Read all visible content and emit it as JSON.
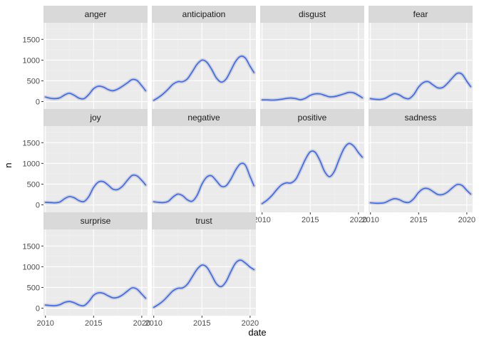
{
  "chart_data": {
    "type": "line",
    "xlabel": "date",
    "ylabel": "n",
    "xlim": [
      2009.8,
      2020.6
    ],
    "ylim": [
      -180,
      1900
    ],
    "x_ticks": [
      2010,
      2015,
      2020
    ],
    "x_tick_labels": [
      "2010",
      "2015",
      "2020"
    ],
    "y_ticks": [
      0,
      500,
      1000,
      1500
    ],
    "y_tick_labels": [
      "0",
      "500",
      "1000",
      "1500"
    ],
    "grid": true,
    "legend": "none",
    "colors": {
      "panel_bg": "#ebebeb",
      "strip_bg": "#d9d9d9",
      "grid_major": "#ffffff",
      "grid_minor": "#f2f2f2",
      "line": "#3366ff",
      "ribbon": "#999999"
    },
    "panels": [
      {
        "name": "anger",
        "x": [
          2010,
          2010.5,
          2011,
          2011.5,
          2012,
          2012.5,
          2013,
          2013.5,
          2014,
          2014.5,
          2015,
          2015.5,
          2016,
          2016.5,
          2017,
          2017.5,
          2018,
          2018.5,
          2019,
          2019.5,
          2020,
          2020.4
        ],
        "y": [
          110,
          80,
          70,
          90,
          160,
          200,
          150,
          80,
          70,
          170,
          310,
          370,
          350,
          290,
          260,
          300,
          370,
          450,
          530,
          510,
          380,
          260
        ]
      },
      {
        "name": "anticipation",
        "x": [
          2010,
          2010.5,
          2011,
          2011.5,
          2012,
          2012.5,
          2013,
          2013.5,
          2014,
          2014.5,
          2015,
          2015.5,
          2016,
          2016.5,
          2017,
          2017.5,
          2018,
          2018.5,
          2019,
          2019.5,
          2020,
          2020.4
        ],
        "y": [
          30,
          100,
          190,
          300,
          420,
          480,
          480,
          550,
          720,
          900,
          1000,
          950,
          780,
          570,
          470,
          540,
          750,
          970,
          1090,
          1050,
          850,
          700
        ]
      },
      {
        "name": "disgust",
        "x": [
          2010,
          2010.5,
          2011,
          2011.5,
          2012,
          2012.5,
          2013,
          2013.5,
          2014,
          2014.5,
          2015,
          2015.5,
          2016,
          2016.5,
          2017,
          2017.5,
          2018,
          2018.5,
          2019,
          2019.5,
          2020,
          2020.4
        ],
        "y": [
          40,
          40,
          35,
          40,
          55,
          75,
          85,
          70,
          45,
          80,
          150,
          185,
          185,
          150,
          115,
          120,
          150,
          185,
          220,
          210,
          150,
          90
        ]
      },
      {
        "name": "fear",
        "x": [
          2010,
          2010.5,
          2011,
          2011.5,
          2012,
          2012.5,
          2013,
          2013.5,
          2014,
          2014.5,
          2015,
          2015.5,
          2016,
          2016.5,
          2017,
          2017.5,
          2018,
          2018.5,
          2019,
          2019.5,
          2020,
          2020.4
        ],
        "y": [
          70,
          55,
          50,
          75,
          140,
          190,
          160,
          90,
          70,
          170,
          350,
          460,
          480,
          400,
          330,
          340,
          440,
          570,
          680,
          660,
          490,
          360
        ]
      },
      {
        "name": "joy",
        "x": [
          2010,
          2010.5,
          2011,
          2011.5,
          2012,
          2012.5,
          2013,
          2013.5,
          2014,
          2014.5,
          2015,
          2015.5,
          2016,
          2016.5,
          2017,
          2017.5,
          2018,
          2018.5,
          2019,
          2019.5,
          2020,
          2020.4
        ],
        "y": [
          60,
          55,
          50,
          70,
          150,
          200,
          170,
          100,
          80,
          200,
          420,
          550,
          560,
          480,
          380,
          370,
          450,
          590,
          710,
          700,
          590,
          480
        ]
      },
      {
        "name": "negative",
        "x": [
          2010,
          2010.5,
          2011,
          2011.5,
          2012,
          2012.5,
          2013,
          2013.5,
          2014,
          2014.5,
          2015,
          2015.5,
          2016,
          2016.5,
          2017,
          2017.5,
          2018,
          2018.5,
          2019,
          2019.5,
          2020,
          2020.4
        ],
        "y": [
          75,
          60,
          55,
          85,
          190,
          260,
          220,
          120,
          90,
          230,
          500,
          670,
          700,
          580,
          450,
          460,
          620,
          840,
          990,
          960,
          680,
          460
        ]
      },
      {
        "name": "positive",
        "x": [
          2010,
          2010.5,
          2011,
          2011.5,
          2012,
          2012.5,
          2013,
          2013.5,
          2014,
          2014.5,
          2015,
          2015.5,
          2016,
          2016.5,
          2017,
          2017.5,
          2018,
          2018.5,
          2019,
          2019.5,
          2020,
          2020.4
        ],
        "y": [
          30,
          110,
          220,
          360,
          480,
          530,
          530,
          620,
          850,
          1100,
          1280,
          1270,
          1070,
          800,
          680,
          810,
          1100,
          1360,
          1480,
          1420,
          1260,
          1150
        ]
      },
      {
        "name": "sadness",
        "x": [
          2010,
          2010.5,
          2011,
          2011.5,
          2012,
          2012.5,
          2013,
          2013.5,
          2014,
          2014.5,
          2015,
          2015.5,
          2016,
          2016.5,
          2017,
          2017.5,
          2018,
          2018.5,
          2019,
          2019.5,
          2020,
          2020.4
        ],
        "y": [
          50,
          40,
          40,
          55,
          110,
          150,
          125,
          70,
          60,
          150,
          300,
          390,
          390,
          320,
          250,
          250,
          310,
          410,
          490,
          470,
          350,
          260
        ]
      },
      {
        "name": "surprise",
        "x": [
          2010,
          2010.5,
          2011,
          2011.5,
          2012,
          2012.5,
          2013,
          2013.5,
          2014,
          2014.5,
          2015,
          2015.5,
          2016,
          2016.5,
          2017,
          2017.5,
          2018,
          2018.5,
          2019,
          2019.5,
          2020,
          2020.4
        ],
        "y": [
          75,
          65,
          60,
          85,
          140,
          160,
          130,
          75,
          60,
          160,
          310,
          370,
          360,
          300,
          250,
          260,
          320,
          410,
          490,
          460,
          340,
          240
        ]
      },
      {
        "name": "trust",
        "x": [
          2010,
          2010.5,
          2011,
          2011.5,
          2012,
          2012.5,
          2013,
          2013.5,
          2014,
          2014.5,
          2015,
          2015.5,
          2016,
          2016.5,
          2017,
          2017.5,
          2018,
          2018.5,
          2019,
          2019.5,
          2020,
          2020.4
        ],
        "y": [
          20,
          90,
          180,
          300,
          420,
          480,
          490,
          580,
          760,
          940,
          1040,
          990,
          800,
          590,
          520,
          640,
          880,
          1090,
          1160,
          1090,
          990,
          930
        ]
      }
    ]
  }
}
